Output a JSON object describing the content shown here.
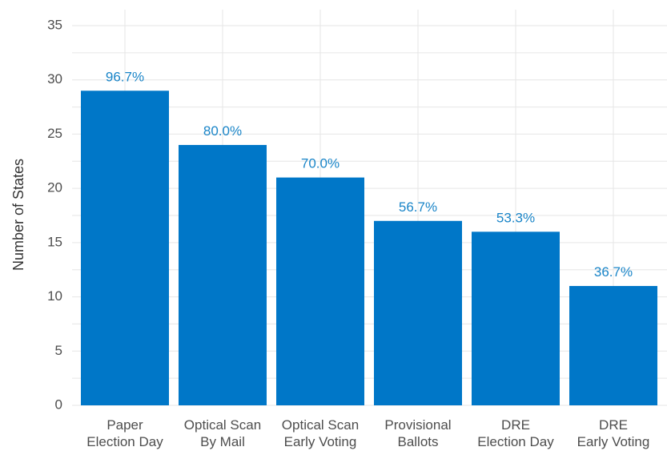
{
  "chart_data": {
    "type": "bar",
    "title": "",
    "xlabel": "",
    "ylabel": "Number of States",
    "ylim": [
      0,
      35
    ],
    "yticks": [
      0,
      5,
      10,
      15,
      20,
      25,
      30,
      35
    ],
    "grid": true,
    "legend": "none",
    "categories": [
      [
        "Paper",
        "Election Day"
      ],
      [
        "Optical Scan",
        "By Mail"
      ],
      [
        "Optical Scan",
        "Early Voting"
      ],
      [
        "Provisional",
        "Ballots"
      ],
      [
        "DRE",
        "Election Day"
      ],
      [
        "DRE",
        "Early Voting"
      ]
    ],
    "values": [
      29,
      24,
      21,
      17,
      16,
      11
    ],
    "data_labels": [
      "96.7%",
      "80.0%",
      "70.0%",
      "56.7%",
      "53.3%",
      "36.7%"
    ],
    "colors": {
      "bar": "#0077c8",
      "data_label": "#1a85c8"
    }
  }
}
